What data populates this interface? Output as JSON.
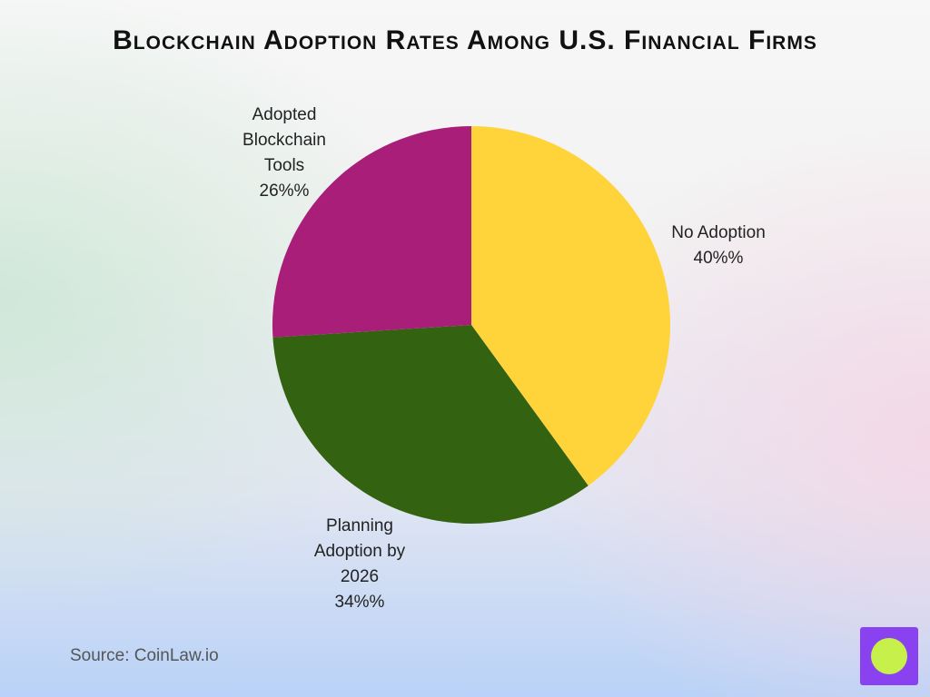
{
  "chart_data": {
    "type": "pie",
    "title": "Blockchain Adoption Rates Among U.S. Financial Firms",
    "categories": [
      "No Adoption",
      "Planning Adoption by 2026",
      "Adopted Blockchain Tools"
    ],
    "values": [
      40,
      34,
      26
    ],
    "value_labels": [
      "40%%",
      "34%%",
      "26%%"
    ],
    "colors": [
      "#ffd43a",
      "#336211",
      "#a91e78"
    ],
    "source": "Source: CoinLaw.io"
  }
}
